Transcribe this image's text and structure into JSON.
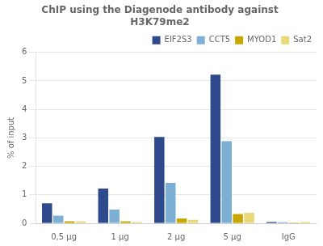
{
  "chart_data": {
    "type": "bar",
    "title": [
      "ChIP using the Diagenode antibody against",
      "H3K79me2"
    ],
    "ylabel": "% of input",
    "categories": [
      "0,5 μg",
      "1 μg",
      "2 μg",
      "5 μg",
      "IgG"
    ],
    "series": [
      {
        "name": "EIF2S3",
        "color": "#2E4A8C",
        "values": [
          0.7,
          1.22,
          3.03,
          5.22,
          0.05
        ]
      },
      {
        "name": "CCT5",
        "color": "#7BAFD4",
        "values": [
          0.27,
          0.48,
          1.42,
          2.88,
          0.04
        ]
      },
      {
        "name": "MYOD1",
        "color": "#C8A800",
        "values": [
          0.07,
          0.07,
          0.17,
          0.33,
          0.03
        ]
      },
      {
        "name": "Sat2",
        "color": "#E8D87A",
        "values": [
          0.07,
          0.05,
          0.12,
          0.37,
          0.05
        ]
      }
    ],
    "ylim": [
      0,
      6
    ],
    "yticks": [
      0,
      1,
      2,
      3,
      4,
      5,
      6
    ],
    "grid": true,
    "legend": "upper right"
  }
}
